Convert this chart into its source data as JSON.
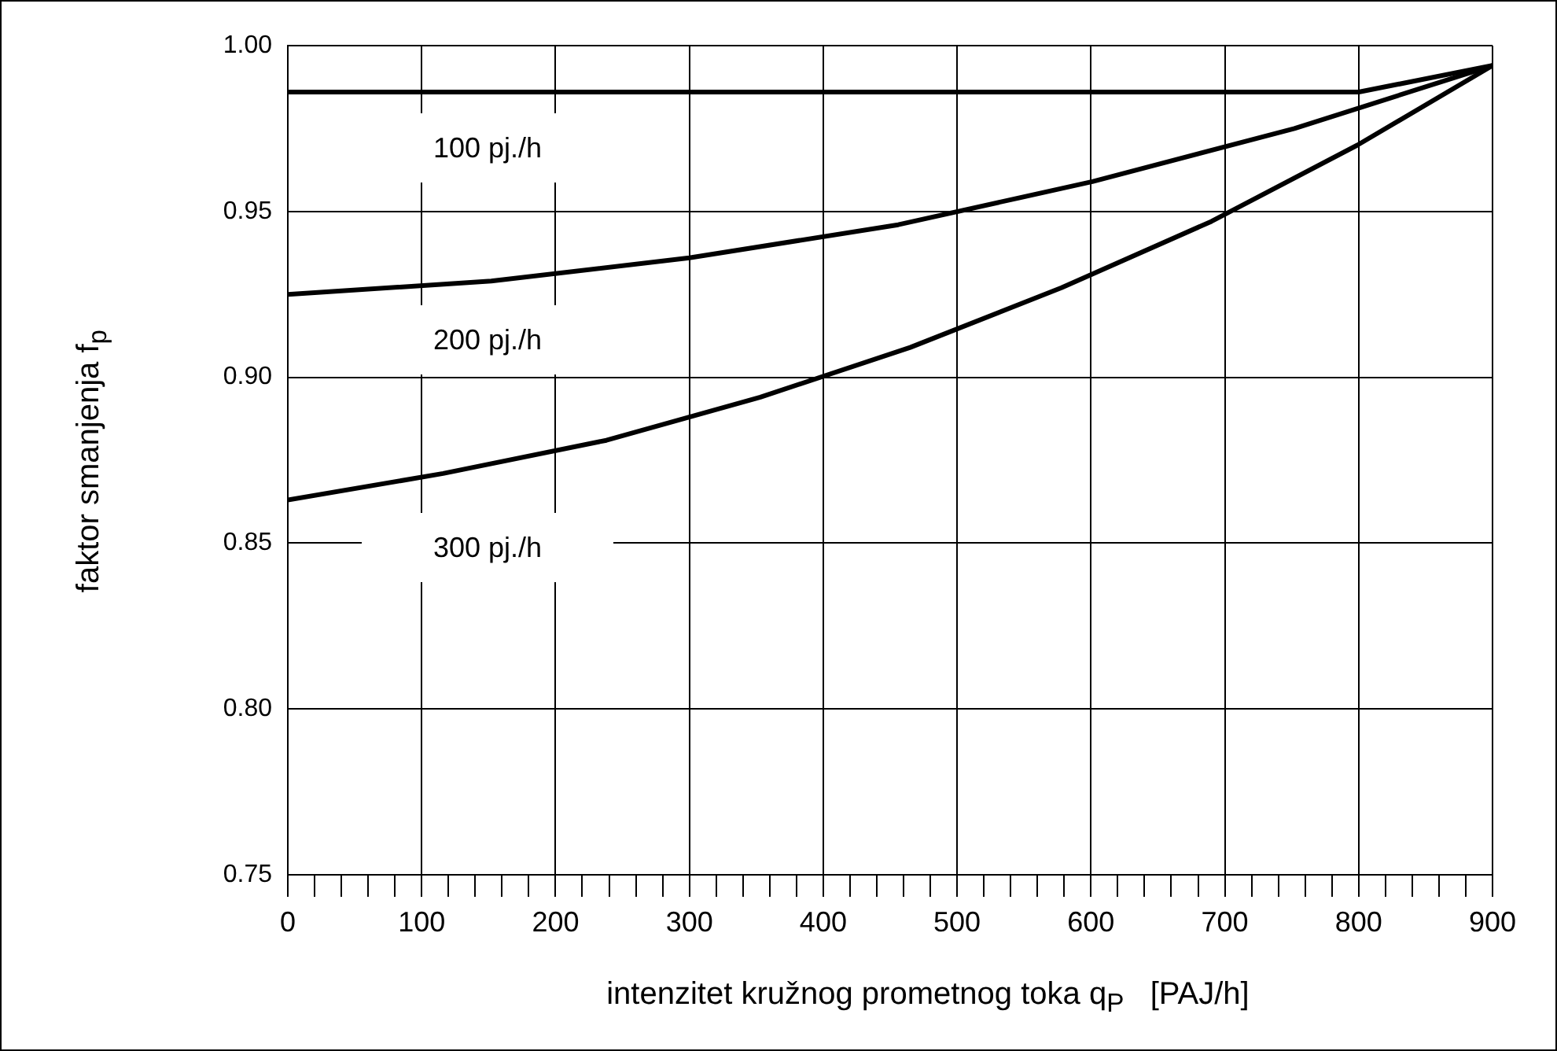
{
  "chart_data": {
    "type": "line",
    "xlabel": "intenzitet kružnog prometnog toka q$_{P}$   [PAJ/h]",
    "ylabel": "faktor smanjenja f$_{p}$",
    "series": [
      {
        "color": "#000000",
        "x": [
          0,
          800,
          900
        ],
        "values": [
          0.986,
          0.986,
          0.994
        ]
      },
      {
        "color": "#000000",
        "x": [
          0,
          152,
          300,
          456,
          601,
          752,
          900
        ],
        "values": [
          0.925,
          0.929,
          0.936,
          0.946,
          0.959,
          0.975,
          0.994
        ]
      },
      {
        "color": "#000000",
        "x": [
          0,
          116,
          238,
          300,
          353,
          465,
          578,
          690,
          799,
          900
        ],
        "values": [
          0.863,
          0.871,
          0.881,
          0.888,
          0.894,
          0.909,
          0.927,
          0.947,
          0.97,
          0.994
        ]
      }
    ],
    "annotations": [
      "100 pj./h",
      "200 pj./h",
      "300 pj./h"
    ],
    "xlim": [
      0,
      900
    ],
    "xticks": [
      0,
      {
        "value": 20,
        "label": null
      },
      {
        "value": 40,
        "label": null
      },
      {
        "value": 60,
        "label": null
      },
      {
        "value": 80,
        "label": null
      },
      100,
      {
        "value": 120,
        "label": null
      },
      {
        "value": 140,
        "label": null
      },
      {
        "value": 160,
        "label": null
      },
      {
        "value": 180,
        "label": null
      },
      200,
      {
        "value": 220,
        "label": null
      },
      {
        "value": 240,
        "label": null
      },
      {
        "value": 260,
        "label": null
      },
      {
        "value": 280,
        "label": null
      },
      300,
      {
        "value": 320,
        "label": null
      },
      {
        "value": 340,
        "label": null
      },
      {
        "value": 360,
        "label": null
      },
      {
        "value": 380,
        "label": null
      },
      400,
      {
        "value": 420,
        "label": null
      },
      {
        "value": 440,
        "label": null
      },
      {
        "value": 460,
        "label": null
      },
      {
        "value": 480,
        "label": null
      },
      500,
      {
        "value": 520,
        "label": null
      },
      {
        "value": 540,
        "label": null
      },
      {
        "value": 560,
        "label": null
      },
      {
        "value": 580,
        "label": null
      },
      600,
      {
        "value": 620,
        "label": null
      },
      {
        "value": 640,
        "label": null
      },
      {
        "value": 660,
        "label": null
      },
      {
        "value": 680,
        "label": null
      },
      700,
      {
        "value": 720,
        "label": null
      },
      {
        "value": 740,
        "label": null
      },
      {
        "value": 760,
        "label": null
      },
      {
        "value": 780,
        "label": null
      },
      800,
      {
        "value": 820,
        "label": null
      },
      {
        "value": 840,
        "label": null
      },
      {
        "value": 860,
        "label": null
      },
      {
        "value": 880,
        "label": null
      },
      900
    ],
    "ylim": [
      0.75,
      1.0
    ],
    "yticks": [
      {
        "value": 0.75,
        "label": "0.75"
      },
      {
        "value": 0.8,
        "label": "0.80"
      },
      {
        "value": 0.85,
        "label": "0.85"
      },
      {
        "value": 0.9,
        "label": "0.90"
      },
      {
        "value": 0.95,
        "label": "0.95"
      },
      {
        "value": 1.0,
        "label": "1.00"
      }
    ],
    "grid": true,
    "legend": false,
    "marker": "none",
    "line_style": "solid"
  }
}
